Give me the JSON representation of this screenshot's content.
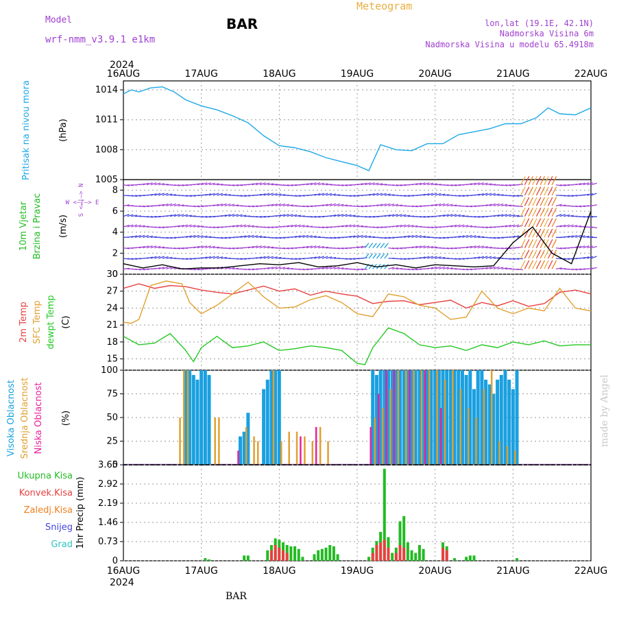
{
  "header": {
    "model_label": "Model",
    "model_name": "wrf-nmm_v3.9.1 e1km",
    "station": "BAR",
    "product": "Meteogram",
    "lonlat": "lon,lat (19.1E, 42.1N)",
    "elevation": "Nadmorska Visina 6m",
    "model_elevation": "Nadmorska Visina u modelu 65.4918m",
    "footer_station": "BAR",
    "credit": "made by Angel"
  },
  "colors": {
    "pressure": "#1ea8e8",
    "wind_title": "#22bb22",
    "t2m": "#e84040",
    "sfc": "#e0a030",
    "dew": "#22c822",
    "cloud_high": "#1aa0e0",
    "cloud_mid": "#e0a030",
    "cloud_low": "#e8209a",
    "precip_total": "#22bb22",
    "precip_conv": "#e84040",
    "precip_frz": "#f08020",
    "snow": "#4444dd",
    "grad": "#30c0c0",
    "purple": "#a040d0",
    "orange": "#e8b040"
  },
  "x_axis": {
    "year": "2024",
    "ticks": [
      "16AUG",
      "17AUG",
      "18AUG",
      "19AUG",
      "20AUG",
      "21AUG",
      "22AUG"
    ]
  },
  "chart_data": [
    {
      "type": "line",
      "name": "pressure",
      "ylabel": [
        "Pritisak na nivou mora",
        "(hPa)"
      ],
      "yticks": [
        "1014",
        "1011",
        "1008",
        "1005"
      ],
      "ylim": [
        1005,
        1014.9
      ],
      "x": [
        0,
        0.1,
        0.2,
        0.35,
        0.5,
        0.65,
        0.8,
        1.0,
        1.2,
        1.4,
        1.6,
        1.8,
        2.0,
        2.2,
        2.4,
        2.6,
        2.8,
        3.0,
        3.15,
        3.3,
        3.5,
        3.7,
        3.9,
        4.1,
        4.3,
        4.5,
        4.7,
        4.9,
        5.1,
        5.3,
        5.45,
        5.6,
        5.8,
        6.0
      ],
      "values": [
        1013.6,
        1014.0,
        1013.8,
        1014.2,
        1014.3,
        1013.8,
        1013.0,
        1012.4,
        1012.0,
        1011.4,
        1010.7,
        1009.4,
        1008.4,
        1008.2,
        1007.8,
        1007.2,
        1006.8,
        1006.4,
        1005.9,
        1008.5,
        1008.0,
        1007.9,
        1008.6,
        1008.6,
        1009.5,
        1009.8,
        1010.1,
        1010.6,
        1010.6,
        1011.2,
        1012.2,
        1011.6,
        1011.5,
        1012.2
      ]
    },
    {
      "type": "scatter",
      "name": "wind",
      "ylabel": [
        "10m Vjetar",
        "Brzina i Pravac",
        "(m/s)"
      ],
      "compass": [
        "W <—|—> E",
        "S <—|—> N"
      ],
      "yticks": [
        "8",
        "6",
        "4",
        "2",
        "0"
      ],
      "ylim": [
        0,
        9
      ],
      "x": [
        0,
        0.25,
        0.5,
        0.75,
        1.0,
        1.25,
        1.5,
        1.75,
        2.0,
        2.25,
        2.5,
        2.75,
        3.0,
        3.25,
        3.5,
        3.75,
        4.0,
        4.25,
        4.5,
        4.75,
        5.0,
        5.25,
        5.5,
        5.75,
        6.0
      ],
      "values": [
        1.0,
        0.6,
        0.9,
        0.5,
        0.6,
        0.6,
        0.8,
        1.0,
        0.9,
        1.1,
        0.7,
        0.8,
        1.1,
        0.7,
        0.9,
        0.6,
        0.9,
        0.8,
        0.7,
        0.8,
        3.0,
        4.5,
        2.0,
        1.0,
        6.0
      ]
    },
    {
      "type": "line",
      "name": "temperature",
      "ylabel": [
        "2m Temp",
        "SFC Temp",
        "dewpt Temp",
        "(C)"
      ],
      "yticks": [
        "30",
        "27",
        "24",
        "21",
        "18",
        "15"
      ],
      "ylim": [
        13,
        30
      ],
      "series": [
        {
          "name": "2m Temp",
          "x": [
            0,
            0.2,
            0.4,
            0.6,
            0.8,
            1.0,
            1.2,
            1.4,
            1.6,
            1.8,
            2.0,
            2.2,
            2.4,
            2.6,
            2.8,
            3.0,
            3.2,
            3.4,
            3.6,
            3.8,
            4.0,
            4.2,
            4.4,
            4.6,
            4.8,
            5.0,
            5.2,
            5.4,
            5.6,
            5.8,
            6.0
          ],
          "values": [
            27.5,
            28.3,
            27.5,
            28.0,
            27.8,
            27.2,
            26.8,
            26.5,
            27.2,
            27.9,
            27.0,
            27.4,
            26.3,
            27.0,
            26.5,
            26.1,
            24.8,
            25.2,
            25.3,
            24.6,
            25.0,
            25.4,
            24.0,
            25.0,
            24.4,
            25.3,
            24.3,
            24.8,
            26.8,
            27.2,
            26.5
          ]
        },
        {
          "name": "SFC Temp",
          "x": [
            0,
            0.1,
            0.2,
            0.35,
            0.55,
            0.75,
            0.85,
            1.0,
            1.2,
            1.4,
            1.6,
            1.8,
            2.0,
            2.2,
            2.4,
            2.6,
            2.8,
            3.0,
            3.2,
            3.4,
            3.6,
            3.8,
            4.0,
            4.2,
            4.4,
            4.6,
            4.8,
            5.0,
            5.2,
            5.4,
            5.6,
            5.8,
            6.0
          ],
          "values": [
            21.5,
            21.3,
            22.0,
            28.0,
            28.8,
            28.3,
            25.0,
            23.0,
            24.5,
            26.5,
            28.6,
            26.0,
            24.0,
            24.2,
            25.5,
            26.2,
            25.0,
            23.0,
            22.5,
            26.5,
            26.0,
            24.5,
            24.0,
            22.0,
            22.4,
            27.0,
            24.0,
            23.0,
            24.0,
            23.5,
            27.5,
            24.0,
            23.5
          ]
        },
        {
          "name": "dewpt Temp",
          "x": [
            0,
            0.2,
            0.4,
            0.6,
            0.8,
            0.9,
            1.0,
            1.2,
            1.4,
            1.6,
            1.8,
            2.0,
            2.2,
            2.4,
            2.6,
            2.8,
            3.0,
            3.1,
            3.2,
            3.4,
            3.6,
            3.8,
            4.0,
            4.2,
            4.4,
            4.6,
            4.8,
            5.0,
            5.2,
            5.4,
            5.6,
            5.8,
            6.0
          ],
          "values": [
            19.0,
            17.5,
            17.8,
            19.5,
            16.5,
            14.5,
            17.0,
            19.0,
            17.0,
            17.3,
            18.0,
            16.5,
            16.8,
            17.3,
            17.0,
            16.5,
            14.2,
            14.0,
            17.0,
            20.5,
            19.5,
            17.5,
            17.0,
            17.3,
            16.5,
            17.5,
            17.0,
            18.0,
            17.5,
            18.2,
            17.3,
            17.5,
            17.5
          ]
        }
      ]
    },
    {
      "type": "bar",
      "name": "clouds",
      "ylabel": [
        "Visoka Oblacnost",
        "Srednja Oblacnost",
        "Niska Oblacnost",
        "(%)"
      ],
      "yticks": [
        "100",
        "75",
        "50",
        "25",
        "0"
      ],
      "ylim": [
        0,
        100
      ],
      "series": [
        {
          "name": "Visoka Oblacnost",
          "x": [
            0.8,
            0.85,
            0.9,
            0.95,
            1.0,
            1.05,
            1.1,
            1.5,
            1.55,
            1.6,
            1.8,
            1.85,
            1.9,
            1.95,
            2.0,
            3.2,
            3.25,
            3.3,
            3.35,
            3.4,
            3.45,
            3.5,
            3.55,
            3.6,
            3.65,
            3.7,
            3.75,
            3.8,
            3.85,
            3.9,
            3.95,
            4.0,
            4.05,
            4.1,
            4.15,
            4.2,
            4.25,
            4.3,
            4.35,
            4.4,
            4.45,
            4.5,
            4.55,
            4.6,
            4.65,
            4.7,
            4.75,
            4.8,
            4.85,
            4.9,
            4.95,
            5.0,
            5.05
          ],
          "values": [
            100,
            100,
            95,
            90,
            100,
            100,
            95,
            30,
            35,
            55,
            80,
            90,
            100,
            100,
            100,
            100,
            95,
            100,
            100,
            100,
            100,
            100,
            100,
            100,
            100,
            100,
            100,
            100,
            100,
            100,
            100,
            100,
            100,
            100,
            100,
            100,
            100,
            100,
            100,
            95,
            100,
            80,
            100,
            100,
            90,
            85,
            75,
            90,
            95,
            100,
            90,
            80,
            100
          ]
        },
        {
          "name": "Srednja Oblacnost",
          "x": [
            0.7,
            0.75,
            0.8,
            1.15,
            1.2,
            1.55,
            1.65,
            1.7,
            1.9,
            2.0,
            2.1,
            2.2,
            2.3,
            2.4,
            2.5,
            2.6,
            3.2,
            3.3,
            3.4,
            3.5,
            3.6,
            3.7,
            3.8,
            3.9,
            4.0,
            4.1,
            4.2,
            4.3,
            4.4,
            4.5,
            4.6,
            4.7,
            4.8,
            4.9,
            5.0
          ],
          "values": [
            50,
            100,
            100,
            50,
            50,
            40,
            30,
            25,
            100,
            25,
            35,
            35,
            30,
            25,
            40,
            25,
            50,
            60,
            80,
            100,
            100,
            100,
            100,
            100,
            100,
            90,
            100,
            80,
            60,
            50,
            80,
            100,
            25,
            20,
            15
          ]
        },
        {
          "name": "Niska Oblacnost",
          "x": [
            1.5,
            2.3,
            2.5,
            3.2,
            3.3,
            3.4,
            3.5,
            3.7,
            3.9,
            4.1
          ],
          "values": [
            15,
            30,
            40,
            40,
            75,
            100,
            100,
            100,
            100,
            60
          ]
        }
      ]
    },
    {
      "type": "bar",
      "name": "precipitation",
      "ylabel": [
        "Ukupna Kisa",
        "Konvek.Kisa",
        "Zaledj.Kisa",
        "Snijeg",
        "Grad",
        "1hr Precip (mm)"
      ],
      "yticks": [
        "3.65",
        "2.92",
        "2.19",
        "1.46",
        "0.73",
        "0"
      ],
      "ylim": [
        0,
        3.65
      ],
      "series": [
        {
          "name": "Ukupna Kisa",
          "x": [
            1.05,
            1.1,
            1.55,
            1.6,
            1.85,
            1.9,
            1.95,
            2.0,
            2.05,
            2.1,
            2.15,
            2.2,
            2.25,
            2.3,
            2.45,
            2.5,
            2.55,
            2.6,
            2.65,
            2.7,
            2.75,
            3.15,
            3.2,
            3.25,
            3.3,
            3.35,
            3.4,
            3.45,
            3.5,
            3.55,
            3.6,
            3.65,
            3.7,
            3.75,
            3.8,
            3.85,
            4.1,
            4.15,
            4.25,
            4.4,
            4.45,
            4.5,
            5.05
          ],
          "values": [
            0.1,
            0.05,
            0.2,
            0.2,
            0.4,
            0.6,
            0.85,
            0.8,
            0.7,
            0.6,
            0.55,
            0.55,
            0.45,
            0.15,
            0.25,
            0.4,
            0.45,
            0.5,
            0.6,
            0.55,
            0.25,
            0.15,
            0.5,
            0.75,
            1.1,
            3.5,
            0.9,
            0.3,
            0.5,
            1.5,
            1.7,
            0.7,
            0.4,
            0.3,
            0.6,
            0.45,
            0.7,
            0.55,
            0.1,
            0.15,
            0.2,
            0.2,
            0.1
          ]
        },
        {
          "name": "Konvek.Kisa",
          "x": [
            1.9,
            1.95,
            2.0,
            2.05,
            2.1,
            3.2,
            3.25,
            3.3,
            3.35,
            3.4,
            3.5,
            3.55,
            3.6,
            4.1,
            4.15
          ],
          "values": [
            0.4,
            0.6,
            0.5,
            0.4,
            0.3,
            0.3,
            0.6,
            0.7,
            0.8,
            0.5,
            0.3,
            0.6,
            0.5,
            0.5,
            0.4
          ]
        }
      ]
    }
  ]
}
